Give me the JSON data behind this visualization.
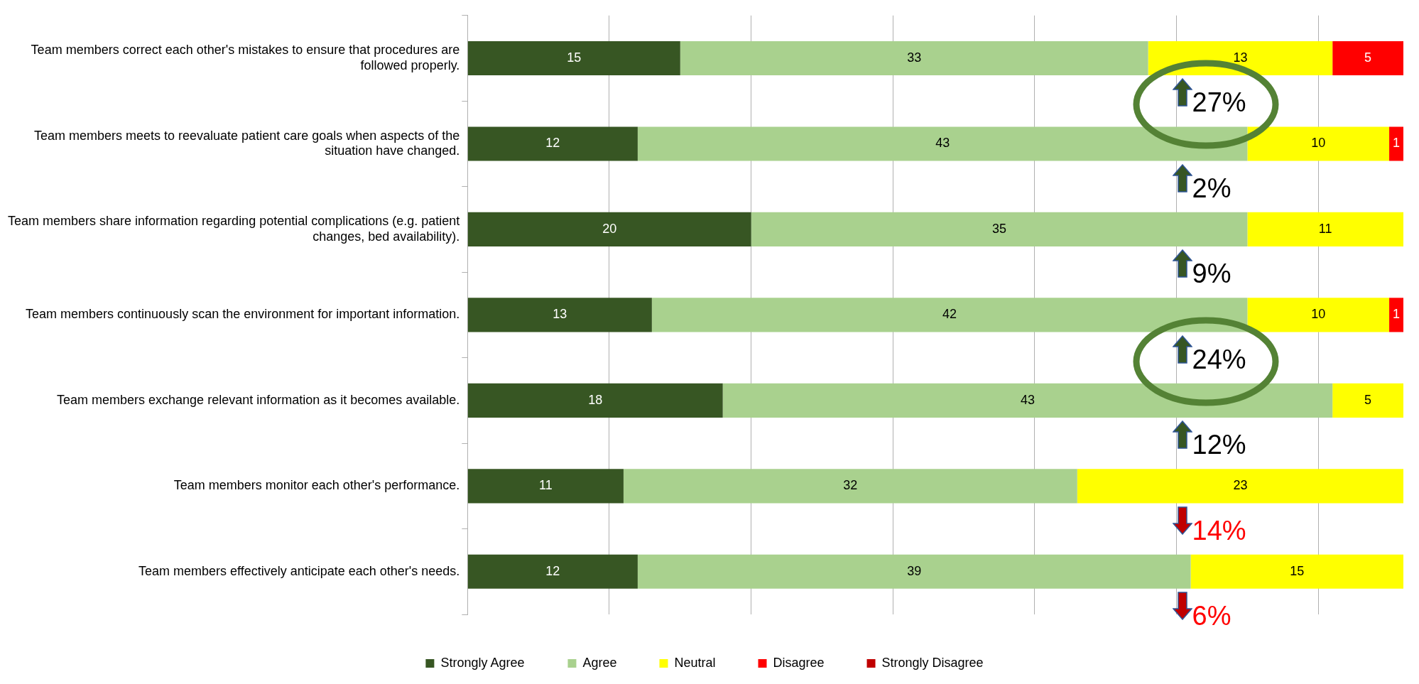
{
  "chart_data": {
    "type": "bar",
    "orientation": "horizontal",
    "stacked": true,
    "categories": [
      "Team members correct each other's mistakes to ensure that procedures are followed properly.",
      "Team members meets to reevaluate patient care goals when aspects of the situation have changed.",
      "Team members share information regarding potential complications (e.g. patient changes, bed availability).",
      "Team members continuously scan the environment for important information.",
      "Team members exchange relevant information as it becomes available.",
      "Team members monitor each other's performance.",
      "Team members effectively anticipate each other's needs."
    ],
    "series": [
      {
        "name": "Strongly Agree",
        "color": "#375623",
        "values": [
          15,
          12,
          20,
          13,
          18,
          11,
          12
        ]
      },
      {
        "name": "Agree",
        "color": "#a9d18e",
        "values": [
          33,
          43,
          35,
          42,
          43,
          32,
          39
        ]
      },
      {
        "name": "Neutral",
        "color": "#ffff00",
        "values": [
          13,
          10,
          11,
          10,
          5,
          23,
          15
        ]
      },
      {
        "name": "Disagree",
        "color": "#ff0000",
        "values": [
          5,
          1,
          null,
          1,
          null,
          null,
          null
        ]
      },
      {
        "name": "Strongly Disagree",
        "color": "#c00000",
        "values": [
          null,
          null,
          null,
          null,
          null,
          null,
          null
        ]
      }
    ],
    "xlim": [
      0,
      66
    ],
    "xticks": [
      {
        "value": 0,
        "label": null
      },
      {
        "value": 10,
        "label": null
      },
      {
        "value": 20,
        "label": null
      },
      {
        "value": 30,
        "label": null
      },
      {
        "value": 40,
        "label": null
      },
      {
        "value": 50,
        "label": null
      },
      {
        "value": 60,
        "label": null
      }
    ],
    "tick_labels": "y",
    "grid": "x",
    "legend": "bottom",
    "data_labels": true,
    "annotations": [
      "27%",
      "2%",
      "9%",
      "24%",
      "12%",
      "14%",
      "6%"
    ]
  }
}
